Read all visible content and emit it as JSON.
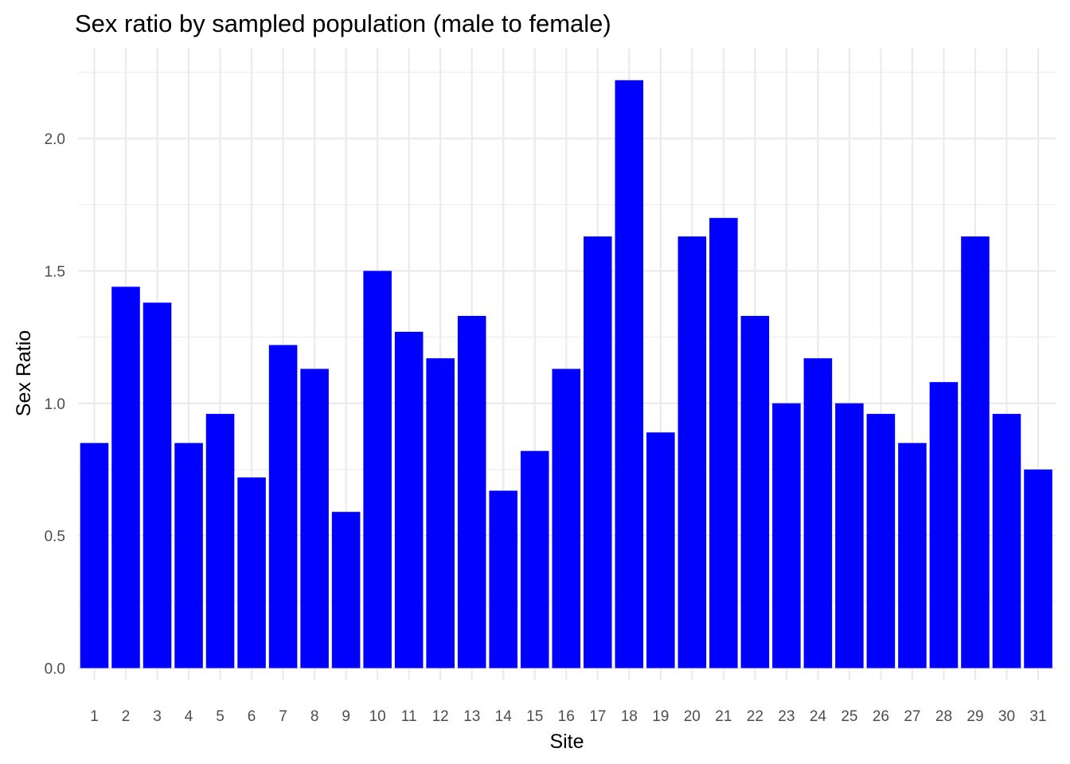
{
  "chart_data": {
    "type": "bar",
    "title": "Sex ratio by sampled population (male to female)",
    "xlabel": "Site",
    "ylabel": "Sex Ratio",
    "categories": [
      "1",
      "2",
      "3",
      "4",
      "5",
      "6",
      "7",
      "8",
      "9",
      "10",
      "11",
      "12",
      "13",
      "14",
      "15",
      "16",
      "17",
      "18",
      "19",
      "20",
      "21",
      "22",
      "23",
      "24",
      "25",
      "26",
      "27",
      "28",
      "29",
      "30",
      "31"
    ],
    "values": [
      0.85,
      1.44,
      1.38,
      0.85,
      0.96,
      0.72,
      1.22,
      1.13,
      0.59,
      1.5,
      1.27,
      1.17,
      1.33,
      0.67,
      0.82,
      1.13,
      1.63,
      2.22,
      0.89,
      1.63,
      1.7,
      1.33,
      1.0,
      1.17,
      1.0,
      0.96,
      0.85,
      1.08,
      1.63,
      0.96,
      0.75
    ],
    "ylim": [
      0,
      2.25
    ],
    "yticks": [
      "0.0",
      "0.5",
      "1.0",
      "1.5",
      "2.0"
    ],
    "grid": true,
    "bar_color": "#0000FF",
    "legend": "none"
  }
}
